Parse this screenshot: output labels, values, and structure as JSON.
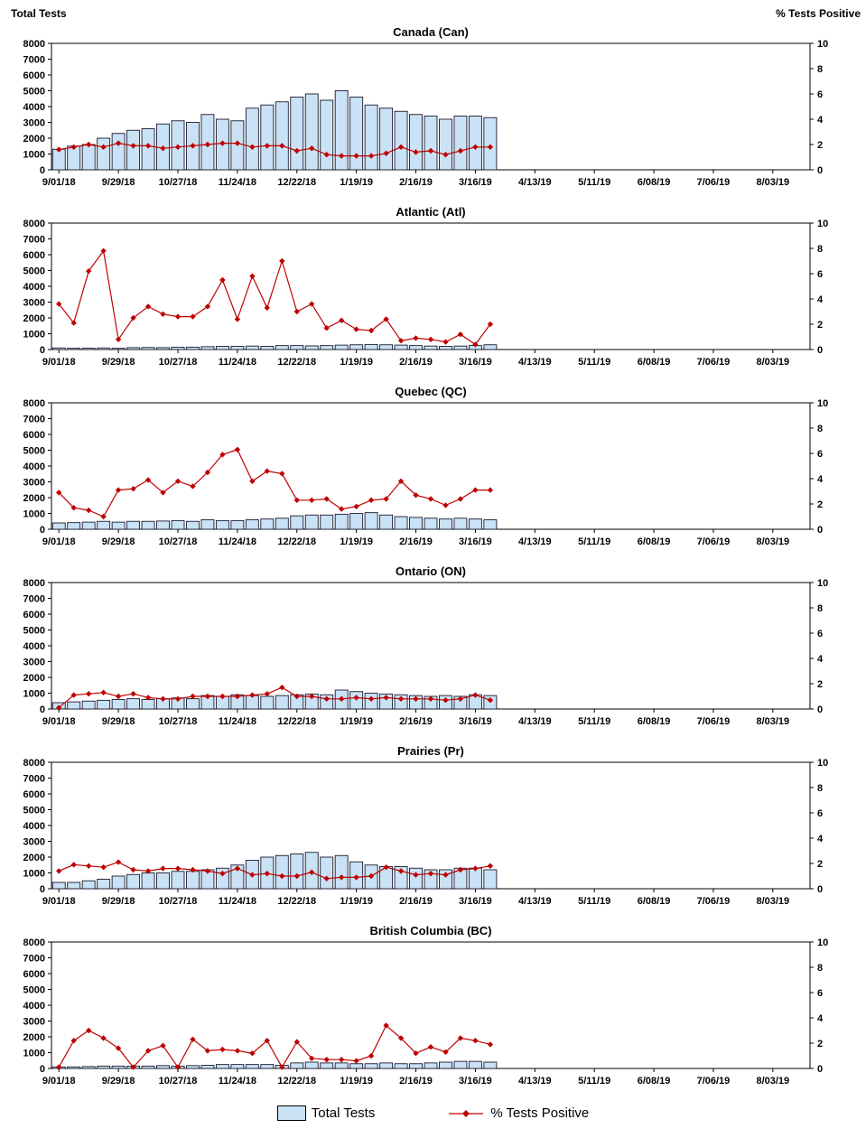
{
  "axis_titles": {
    "left": "Total Tests",
    "right": "% Tests Positive"
  },
  "legend": {
    "total_tests": "Total Tests",
    "pct_positive": "% Tests Positive"
  },
  "colors": {
    "bar_fill": "#C9E2F5",
    "bar_stroke": "#1A1A2E",
    "line": "#C00000",
    "axis": "#000000"
  },
  "left_axis": {
    "min": 0,
    "max": 8000,
    "step": 1000
  },
  "right_axis": {
    "min": 0,
    "max": 10,
    "step": 2
  },
  "axis_total_weeks": 51,
  "x_tick_labels": [
    "9/01/18",
    "9/29/18",
    "10/27/18",
    "11/24/18",
    "12/22/18",
    "1/19/19",
    "2/16/19",
    "3/16/19",
    "4/13/19",
    "5/11/19",
    "6/08/19",
    "7/06/19",
    "8/03/19"
  ],
  "week_dates": [
    "9/01/18",
    "9/08/18",
    "9/15/18",
    "9/22/18",
    "9/29/18",
    "10/06/18",
    "10/13/18",
    "10/20/18",
    "10/27/18",
    "11/03/18",
    "11/10/18",
    "11/17/18",
    "11/24/18",
    "12/01/18",
    "12/08/18",
    "12/15/18",
    "12/22/18",
    "12/29/18",
    "1/05/19",
    "1/12/19",
    "1/19/19",
    "1/26/19",
    "2/02/19",
    "2/09/19",
    "2/16/19",
    "2/23/19",
    "3/02/19",
    "3/09/19",
    "3/16/19",
    "3/23/19"
  ],
  "chart_data": [
    {
      "type": "bar+line",
      "title": "Canada (Can)",
      "xlabel": "",
      "ylabel_left": "Total Tests",
      "ylabel_right": "% Tests Positive",
      "ylim_left": [
        0,
        8000
      ],
      "ylim_right": [
        0,
        10
      ],
      "series": [
        {
          "name": "Total Tests",
          "kind": "bar",
          "axis": "left",
          "values": [
            1300,
            1500,
            1600,
            2000,
            2300,
            2500,
            2600,
            2900,
            3100,
            3000,
            3500,
            3200,
            3100,
            3900,
            4100,
            4300,
            4600,
            4800,
            4400,
            5000,
            4600,
            4100,
            3900,
            3700,
            3500,
            3400,
            3200,
            3400,
            3400,
            3300
          ]
        },
        {
          "name": "% Tests Positive",
          "kind": "line",
          "axis": "right",
          "values": [
            1.6,
            1.8,
            2.0,
            1.8,
            2.1,
            1.9,
            1.9,
            1.7,
            1.8,
            1.9,
            2.0,
            2.1,
            2.1,
            1.8,
            1.9,
            1.9,
            1.5,
            1.7,
            1.2,
            1.1,
            1.1,
            1.1,
            1.3,
            1.8,
            1.4,
            1.5,
            1.2,
            1.5,
            1.8,
            1.8
          ]
        }
      ]
    },
    {
      "type": "bar+line",
      "title": "Atlantic (Atl)",
      "ylim_left": [
        0,
        8000
      ],
      "ylim_right": [
        0,
        10
      ],
      "series": [
        {
          "name": "Total Tests",
          "kind": "bar",
          "axis": "left",
          "values": [
            100,
            80,
            90,
            100,
            80,
            120,
            130,
            120,
            150,
            150,
            180,
            200,
            200,
            220,
            200,
            250,
            250,
            230,
            250,
            280,
            300,
            320,
            300,
            280,
            250,
            220,
            200,
            220,
            250,
            300
          ]
        },
        {
          "name": "% Tests Positive",
          "kind": "line",
          "axis": "right",
          "values": [
            3.6,
            2.1,
            6.2,
            7.8,
            0.8,
            2.5,
            3.4,
            2.8,
            2.6,
            2.6,
            3.4,
            5.5,
            2.4,
            5.8,
            3.3,
            7.0,
            3.0,
            3.6,
            1.7,
            2.3,
            1.6,
            1.5,
            2.4,
            0.7,
            0.9,
            0.8,
            0.6,
            1.2,
            0.4,
            2.0
          ]
        }
      ]
    },
    {
      "type": "bar+line",
      "title": "Quebec (QC)",
      "ylim_left": [
        0,
        8000
      ],
      "ylim_right": [
        0,
        10
      ],
      "series": [
        {
          "name": "Total Tests",
          "kind": "bar",
          "axis": "left",
          "values": [
            400,
            420,
            450,
            500,
            450,
            500,
            500,
            520,
            550,
            500,
            600,
            550,
            550,
            600,
            650,
            700,
            850,
            900,
            900,
            950,
            1000,
            1050,
            900,
            800,
            750,
            700,
            650,
            700,
            650,
            600
          ]
        },
        {
          "name": "% Tests Positive",
          "kind": "line",
          "axis": "right",
          "values": [
            2.9,
            1.7,
            1.5,
            1.0,
            3.1,
            3.2,
            3.9,
            2.9,
            3.8,
            3.4,
            4.5,
            5.9,
            6.3,
            3.8,
            4.6,
            4.4,
            2.3,
            2.3,
            2.4,
            1.6,
            1.8,
            2.3,
            2.4,
            3.8,
            2.7,
            2.4,
            1.9,
            2.4,
            3.1,
            3.1
          ]
        }
      ]
    },
    {
      "type": "bar+line",
      "title": "Ontario (ON)",
      "ylim_left": [
        0,
        8000
      ],
      "ylim_right": [
        0,
        10
      ],
      "series": [
        {
          "name": "Total Tests",
          "kind": "bar",
          "axis": "left",
          "values": [
            400,
            450,
            500,
            550,
            600,
            650,
            600,
            650,
            700,
            650,
            850,
            800,
            900,
            850,
            800,
            850,
            900,
            950,
            900,
            1200,
            1100,
            1000,
            950,
            900,
            850,
            800,
            850,
            800,
            900,
            850
          ]
        },
        {
          "name": "% Tests Positive",
          "kind": "line",
          "axis": "right",
          "values": [
            0.1,
            1.1,
            1.2,
            1.3,
            1.0,
            1.2,
            0.9,
            0.8,
            0.8,
            1.0,
            1.0,
            1.0,
            1.0,
            1.1,
            1.2,
            1.7,
            1.0,
            1.0,
            0.8,
            0.8,
            0.9,
            0.8,
            0.9,
            0.8,
            0.8,
            0.8,
            0.7,
            0.8,
            1.1,
            0.7
          ]
        }
      ]
    },
    {
      "type": "bar+line",
      "title": "Prairies (Pr)",
      "ylim_left": [
        0,
        8000
      ],
      "ylim_right": [
        0,
        10
      ],
      "series": [
        {
          "name": "Total Tests",
          "kind": "bar",
          "axis": "left",
          "values": [
            400,
            400,
            500,
            600,
            800,
            900,
            1000,
            1000,
            1100,
            1100,
            1200,
            1300,
            1500,
            1800,
            2000,
            2100,
            2200,
            2300,
            2000,
            2100,
            1700,
            1500,
            1400,
            1400,
            1300,
            1200,
            1200,
            1300,
            1300,
            1200
          ]
        },
        {
          "name": "% Tests Positive",
          "kind": "line",
          "axis": "right",
          "values": [
            1.4,
            1.9,
            1.8,
            1.7,
            2.1,
            1.5,
            1.4,
            1.6,
            1.6,
            1.5,
            1.4,
            1.2,
            1.6,
            1.1,
            1.2,
            1.0,
            1.0,
            1.3,
            0.8,
            0.9,
            0.9,
            1.0,
            1.7,
            1.4,
            1.1,
            1.2,
            1.1,
            1.5,
            1.6,
            1.8
          ]
        }
      ]
    },
    {
      "type": "bar+line",
      "title": "British Columbia (BC)",
      "ylim_left": [
        0,
        8000
      ],
      "ylim_right": [
        0,
        10
      ],
      "series": [
        {
          "name": "Total Tests",
          "kind": "bar",
          "axis": "left",
          "values": [
            100,
            100,
            120,
            150,
            150,
            150,
            150,
            180,
            150,
            180,
            200,
            250,
            250,
            250,
            250,
            200,
            350,
            400,
            350,
            350,
            300,
            300,
            350,
            300,
            300,
            350,
            400,
            450,
            450,
            400
          ]
        },
        {
          "name": "% Tests Positive",
          "kind": "line",
          "axis": "right",
          "values": [
            0.1,
            2.2,
            3.0,
            2.4,
            1.6,
            0.1,
            1.4,
            1.8,
            0.1,
            2.3,
            1.4,
            1.5,
            1.4,
            1.2,
            2.2,
            0.1,
            2.1,
            0.8,
            0.7,
            0.7,
            0.6,
            1.0,
            3.4,
            2.4,
            1.2,
            1.7,
            1.3,
            2.4,
            2.2,
            1.9
          ]
        }
      ]
    }
  ]
}
